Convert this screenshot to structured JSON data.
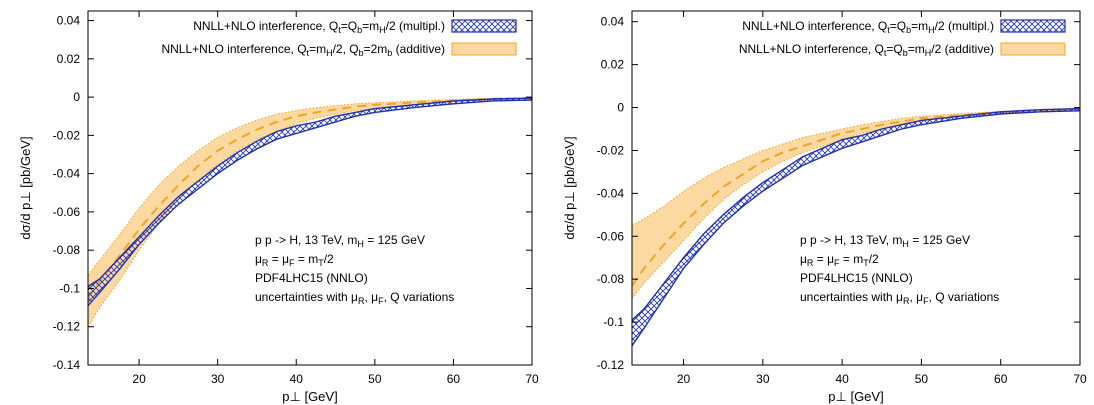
{
  "colors": {
    "multiplicative": "#1f2fb2",
    "additive_fill": "#fbd9a0",
    "additive_line": "#f3a328",
    "frame": "#000000"
  },
  "chart_data": [
    {
      "type": "area",
      "xlabel": "p⊥ [GeV]",
      "ylabel": "dσ/d p⊥ [pb/GeV]",
      "xlim": [
        13.5,
        70
      ],
      "ylim": [
        -0.14,
        0.045
      ],
      "xticks": [
        20,
        30,
        40,
        50,
        60,
        70
      ],
      "yticks": [
        0.04,
        0.02,
        0,
        -0.02,
        -0.04,
        -0.06,
        -0.08,
        -0.1,
        -0.12,
        -0.14
      ],
      "grid": false,
      "legend_position": "top-right",
      "legend": [
        {
          "pre": "NNLL+NLO interference, Q",
          "sub1": "t",
          "mid1": "=Q",
          "sub2": "b",
          "mid2": "=m",
          "sub3": "H",
          "post": "/2 (multipl.)",
          "style": "hatch"
        },
        {
          "pre": "NNLL+NLO interference, Q",
          "sub1": "t",
          "mid1": "=m",
          "sub2": "H",
          "mid2": "/2, Q",
          "sub3": "b",
          "post": "=2m",
          "sub4": "b",
          "post2": " (additive)",
          "style": "fill"
        }
      ],
      "annotation": [
        {
          "pre": "p p -> H, 13 TeV, m",
          "sub": "H",
          "post": " = 125 GeV"
        },
        {
          "pre": "μ",
          "sub": "R",
          "mid": " = μ",
          "sub2": "F",
          "mid2": " = m",
          "sub3": "T",
          "post": "/2"
        },
        {
          "pre": "PDF4LHC15 (NNLO)"
        },
        {
          "pre": "uncertainties with μ",
          "sub": "R",
          "mid": ", μ",
          "sub2": "F",
          "post": ", Q variations"
        }
      ],
      "x": [
        13.5,
        15,
        17.5,
        20,
        22.5,
        25,
        27.5,
        30,
        32.5,
        35,
        37.5,
        40,
        42.5,
        45,
        47.5,
        50,
        55,
        60,
        65,
        70
      ],
      "series": [
        {
          "style": "hatch",
          "upper": [
            -0.099,
            -0.095,
            -0.084,
            -0.073,
            -0.062,
            -0.052,
            -0.044,
            -0.036,
            -0.029,
            -0.023,
            -0.018,
            -0.015,
            -0.013,
            -0.01,
            -0.008,
            -0.006,
            -0.004,
            -0.002,
            -0.001,
            -0.0005
          ],
          "central": [
            -0.104,
            -0.099,
            -0.087,
            -0.075,
            -0.064,
            -0.054,
            -0.046,
            -0.038,
            -0.031,
            -0.025,
            -0.02,
            -0.017,
            -0.014,
            -0.011,
            -0.009,
            -0.007,
            -0.005,
            -0.003,
            -0.0015,
            -0.001
          ],
          "lower": [
            -0.109,
            -0.102,
            -0.09,
            -0.077,
            -0.066,
            -0.056,
            -0.048,
            -0.04,
            -0.033,
            -0.027,
            -0.022,
            -0.019,
            -0.016,
            -0.013,
            -0.01,
            -0.008,
            -0.0055,
            -0.0035,
            -0.002,
            -0.0015
          ]
        },
        {
          "style": "fill",
          "upper": [
            -0.093,
            -0.085,
            -0.072,
            -0.058,
            -0.046,
            -0.036,
            -0.028,
            -0.021,
            -0.016,
            -0.012,
            -0.009,
            -0.007,
            -0.0055,
            -0.0045,
            -0.0035,
            -0.003,
            -0.002,
            -0.0012,
            -0.0006,
            -0.0003
          ],
          "central": [
            -0.105,
            -0.096,
            -0.083,
            -0.069,
            -0.057,
            -0.046,
            -0.036,
            -0.028,
            -0.022,
            -0.017,
            -0.013,
            -0.01,
            -0.008,
            -0.0065,
            -0.005,
            -0.004,
            -0.0028,
            -0.0018,
            -0.0009,
            -0.0005
          ],
          "lower": [
            -0.12,
            -0.11,
            -0.096,
            -0.08,
            -0.066,
            -0.053,
            -0.043,
            -0.035,
            -0.028,
            -0.022,
            -0.018,
            -0.014,
            -0.011,
            -0.009,
            -0.007,
            -0.006,
            -0.004,
            -0.0025,
            -0.0013,
            -0.0007
          ]
        }
      ]
    },
    {
      "type": "area",
      "xlabel": "p⊥ [GeV]",
      "ylabel": "dσ/d p⊥ [pb/GeV]",
      "xlim": [
        13.5,
        70
      ],
      "ylim": [
        -0.12,
        0.045
      ],
      "xticks": [
        20,
        30,
        40,
        50,
        60,
        70
      ],
      "yticks": [
        0.04,
        0.02,
        0,
        -0.02,
        -0.04,
        -0.06,
        -0.08,
        -0.1,
        -0.12
      ],
      "grid": false,
      "legend_position": "top-right",
      "legend": [
        {
          "pre": "NNLL+NLO interference, Q",
          "sub1": "t",
          "mid1": "=Q",
          "sub2": "b",
          "mid2": "=m",
          "sub3": "H",
          "post": "/2 (multipl.)",
          "style": "hatch"
        },
        {
          "pre": "NNLL+NLO interference, Q",
          "sub1": "t",
          "mid1": "=Q",
          "sub2": "b",
          "mid2": "=m",
          "sub3": "H",
          "post": "/2 (additive)",
          "style": "fill"
        }
      ],
      "annotation": [
        {
          "pre": "p p -> H, 13 TeV, m",
          "sub": "H",
          "post": " = 125 GeV"
        },
        {
          "pre": "μ",
          "sub": "R",
          "mid": " = μ",
          "sub2": "F",
          "mid2": " = m",
          "sub3": "T",
          "post": "/2"
        },
        {
          "pre": "PDF4LHC15 (NNLO)"
        },
        {
          "pre": "uncertainties with μ",
          "sub": "R",
          "mid": ", μ",
          "sub2": "F",
          "post": ", Q variations"
        }
      ],
      "x": [
        13.5,
        15,
        17.5,
        20,
        22.5,
        25,
        27.5,
        30,
        32.5,
        35,
        37.5,
        40,
        42.5,
        45,
        47.5,
        50,
        55,
        60,
        65,
        70
      ],
      "series": [
        {
          "style": "hatch",
          "upper": [
            -0.099,
            -0.094,
            -0.082,
            -0.07,
            -0.059,
            -0.05,
            -0.042,
            -0.035,
            -0.029,
            -0.023,
            -0.019,
            -0.015,
            -0.013,
            -0.01,
            -0.008,
            -0.006,
            -0.004,
            -0.002,
            -0.001,
            -0.0005
          ],
          "central": [
            -0.105,
            -0.099,
            -0.086,
            -0.073,
            -0.061,
            -0.052,
            -0.044,
            -0.037,
            -0.031,
            -0.025,
            -0.021,
            -0.017,
            -0.014,
            -0.011,
            -0.009,
            -0.007,
            -0.0045,
            -0.0025,
            -0.0015,
            -0.001
          ],
          "lower": [
            -0.111,
            -0.103,
            -0.089,
            -0.075,
            -0.064,
            -0.054,
            -0.046,
            -0.039,
            -0.033,
            -0.027,
            -0.023,
            -0.019,
            -0.016,
            -0.013,
            -0.01,
            -0.008,
            -0.005,
            -0.003,
            -0.002,
            -0.0015
          ]
        },
        {
          "style": "fill",
          "upper": [
            -0.055,
            -0.052,
            -0.046,
            -0.039,
            -0.033,
            -0.028,
            -0.024,
            -0.02,
            -0.017,
            -0.014,
            -0.012,
            -0.01,
            -0.008,
            -0.0065,
            -0.005,
            -0.004,
            -0.0028,
            -0.0018,
            -0.001,
            -0.0005
          ],
          "central": [
            -0.083,
            -0.075,
            -0.064,
            -0.054,
            -0.045,
            -0.037,
            -0.031,
            -0.025,
            -0.021,
            -0.018,
            -0.015,
            -0.012,
            -0.01,
            -0.008,
            -0.0065,
            -0.005,
            -0.0035,
            -0.0022,
            -0.0012,
            -0.0007
          ],
          "lower": [
            -0.089,
            -0.082,
            -0.072,
            -0.062,
            -0.052,
            -0.043,
            -0.036,
            -0.03,
            -0.025,
            -0.021,
            -0.018,
            -0.015,
            -0.012,
            -0.01,
            -0.008,
            -0.006,
            -0.0042,
            -0.0027,
            -0.0015,
            -0.001
          ]
        }
      ]
    }
  ]
}
